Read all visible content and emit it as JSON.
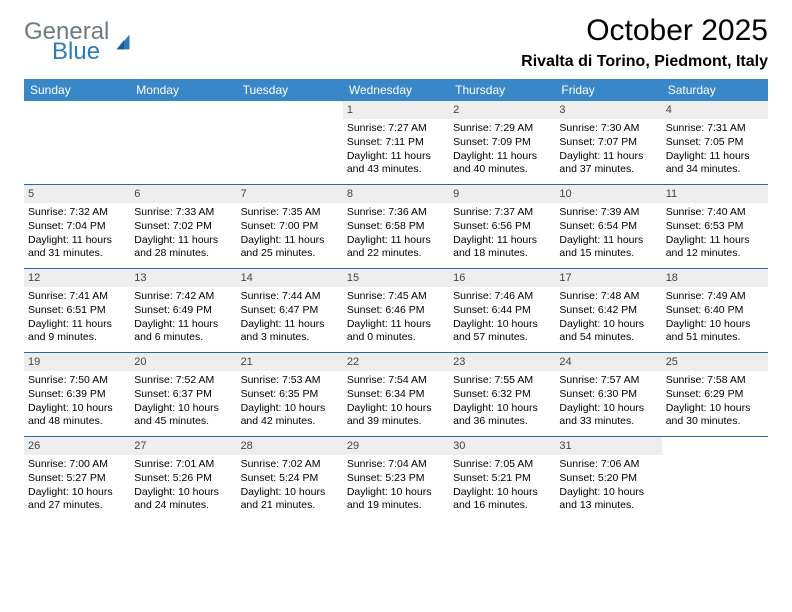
{
  "logo": {
    "word1": "General",
    "word2": "Blue",
    "word1_color": "#6f7a80",
    "word2_color": "#2c7ab8"
  },
  "title": "October 2025",
  "location": "Rivalta di Torino, Piedmont, Italy",
  "header_bg": "#3a87c7",
  "header_text_color": "#ffffff",
  "daybar_bg": "#eeeeee",
  "week_border": "#2a66a0",
  "days": [
    "Sunday",
    "Monday",
    "Tuesday",
    "Wednesday",
    "Thursday",
    "Friday",
    "Saturday"
  ],
  "weeks": [
    [
      {
        "n": "",
        "sr": "",
        "ss": "",
        "dl": ""
      },
      {
        "n": "",
        "sr": "",
        "ss": "",
        "dl": ""
      },
      {
        "n": "",
        "sr": "",
        "ss": "",
        "dl": ""
      },
      {
        "n": "1",
        "sr": "7:27 AM",
        "ss": "7:11 PM",
        "dl": "11 hours and 43 minutes."
      },
      {
        "n": "2",
        "sr": "7:29 AM",
        "ss": "7:09 PM",
        "dl": "11 hours and 40 minutes."
      },
      {
        "n": "3",
        "sr": "7:30 AM",
        "ss": "7:07 PM",
        "dl": "11 hours and 37 minutes."
      },
      {
        "n": "4",
        "sr": "7:31 AM",
        "ss": "7:05 PM",
        "dl": "11 hours and 34 minutes."
      }
    ],
    [
      {
        "n": "5",
        "sr": "7:32 AM",
        "ss": "7:04 PM",
        "dl": "11 hours and 31 minutes."
      },
      {
        "n": "6",
        "sr": "7:33 AM",
        "ss": "7:02 PM",
        "dl": "11 hours and 28 minutes."
      },
      {
        "n": "7",
        "sr": "7:35 AM",
        "ss": "7:00 PM",
        "dl": "11 hours and 25 minutes."
      },
      {
        "n": "8",
        "sr": "7:36 AM",
        "ss": "6:58 PM",
        "dl": "11 hours and 22 minutes."
      },
      {
        "n": "9",
        "sr": "7:37 AM",
        "ss": "6:56 PM",
        "dl": "11 hours and 18 minutes."
      },
      {
        "n": "10",
        "sr": "7:39 AM",
        "ss": "6:54 PM",
        "dl": "11 hours and 15 minutes."
      },
      {
        "n": "11",
        "sr": "7:40 AM",
        "ss": "6:53 PM",
        "dl": "11 hours and 12 minutes."
      }
    ],
    [
      {
        "n": "12",
        "sr": "7:41 AM",
        "ss": "6:51 PM",
        "dl": "11 hours and 9 minutes."
      },
      {
        "n": "13",
        "sr": "7:42 AM",
        "ss": "6:49 PM",
        "dl": "11 hours and 6 minutes."
      },
      {
        "n": "14",
        "sr": "7:44 AM",
        "ss": "6:47 PM",
        "dl": "11 hours and 3 minutes."
      },
      {
        "n": "15",
        "sr": "7:45 AM",
        "ss": "6:46 PM",
        "dl": "11 hours and 0 minutes."
      },
      {
        "n": "16",
        "sr": "7:46 AM",
        "ss": "6:44 PM",
        "dl": "10 hours and 57 minutes."
      },
      {
        "n": "17",
        "sr": "7:48 AM",
        "ss": "6:42 PM",
        "dl": "10 hours and 54 minutes."
      },
      {
        "n": "18",
        "sr": "7:49 AM",
        "ss": "6:40 PM",
        "dl": "10 hours and 51 minutes."
      }
    ],
    [
      {
        "n": "19",
        "sr": "7:50 AM",
        "ss": "6:39 PM",
        "dl": "10 hours and 48 minutes."
      },
      {
        "n": "20",
        "sr": "7:52 AM",
        "ss": "6:37 PM",
        "dl": "10 hours and 45 minutes."
      },
      {
        "n": "21",
        "sr": "7:53 AM",
        "ss": "6:35 PM",
        "dl": "10 hours and 42 minutes."
      },
      {
        "n": "22",
        "sr": "7:54 AM",
        "ss": "6:34 PM",
        "dl": "10 hours and 39 minutes."
      },
      {
        "n": "23",
        "sr": "7:55 AM",
        "ss": "6:32 PM",
        "dl": "10 hours and 36 minutes."
      },
      {
        "n": "24",
        "sr": "7:57 AM",
        "ss": "6:30 PM",
        "dl": "10 hours and 33 minutes."
      },
      {
        "n": "25",
        "sr": "7:58 AM",
        "ss": "6:29 PM",
        "dl": "10 hours and 30 minutes."
      }
    ],
    [
      {
        "n": "26",
        "sr": "7:00 AM",
        "ss": "5:27 PM",
        "dl": "10 hours and 27 minutes."
      },
      {
        "n": "27",
        "sr": "7:01 AM",
        "ss": "5:26 PM",
        "dl": "10 hours and 24 minutes."
      },
      {
        "n": "28",
        "sr": "7:02 AM",
        "ss": "5:24 PM",
        "dl": "10 hours and 21 minutes."
      },
      {
        "n": "29",
        "sr": "7:04 AM",
        "ss": "5:23 PM",
        "dl": "10 hours and 19 minutes."
      },
      {
        "n": "30",
        "sr": "7:05 AM",
        "ss": "5:21 PM",
        "dl": "10 hours and 16 minutes."
      },
      {
        "n": "31",
        "sr": "7:06 AM",
        "ss": "5:20 PM",
        "dl": "10 hours and 13 minutes."
      },
      {
        "n": "",
        "sr": "",
        "ss": "",
        "dl": ""
      }
    ]
  ],
  "labels": {
    "sunrise": "Sunrise:",
    "sunset": "Sunset:",
    "daylight": "Daylight:"
  }
}
